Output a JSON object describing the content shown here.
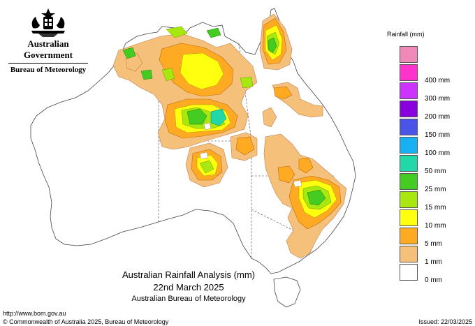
{
  "header": {
    "government": "Australian Government",
    "bureau": "Bureau of Meteorology"
  },
  "title": {
    "line1": "Australian Rainfall Analysis (mm)",
    "line2": "22nd March 2025",
    "line3": "Australian Bureau of Meteorology"
  },
  "footer": {
    "url": "http://www.bom.gov.au",
    "copyright": "© Commonwealth of Australia 2025, Bureau of Meteorology",
    "issued": "Issued: 22/03/2025"
  },
  "legend": {
    "title": "Rainfall (mm)",
    "bins": [
      {
        "label": "",
        "color": "#f088b8"
      },
      {
        "label": "400 mm",
        "color": "#ff33cc"
      },
      {
        "label": "300 mm",
        "color": "#cc33ff"
      },
      {
        "label": "200 mm",
        "color": "#8800dd"
      },
      {
        "label": "150 mm",
        "color": "#4a55e8"
      },
      {
        "label": "100 mm",
        "color": "#18b0f0"
      },
      {
        "label": "50 mm",
        "color": "#22d8a8"
      },
      {
        "label": "25 mm",
        "color": "#44cc22"
      },
      {
        "label": "15 mm",
        "color": "#a8e810"
      },
      {
        "label": "10 mm",
        "color": "#ffff10"
      },
      {
        "label": "5 mm",
        "color": "#ffaa22"
      },
      {
        "label": "1 mm",
        "color": "#f5c07a"
      },
      {
        "label": "0 mm",
        "color": "#ffffff"
      }
    ]
  },
  "icons": {
    "crest": "commonwealth-coat-of-arms-icon"
  }
}
